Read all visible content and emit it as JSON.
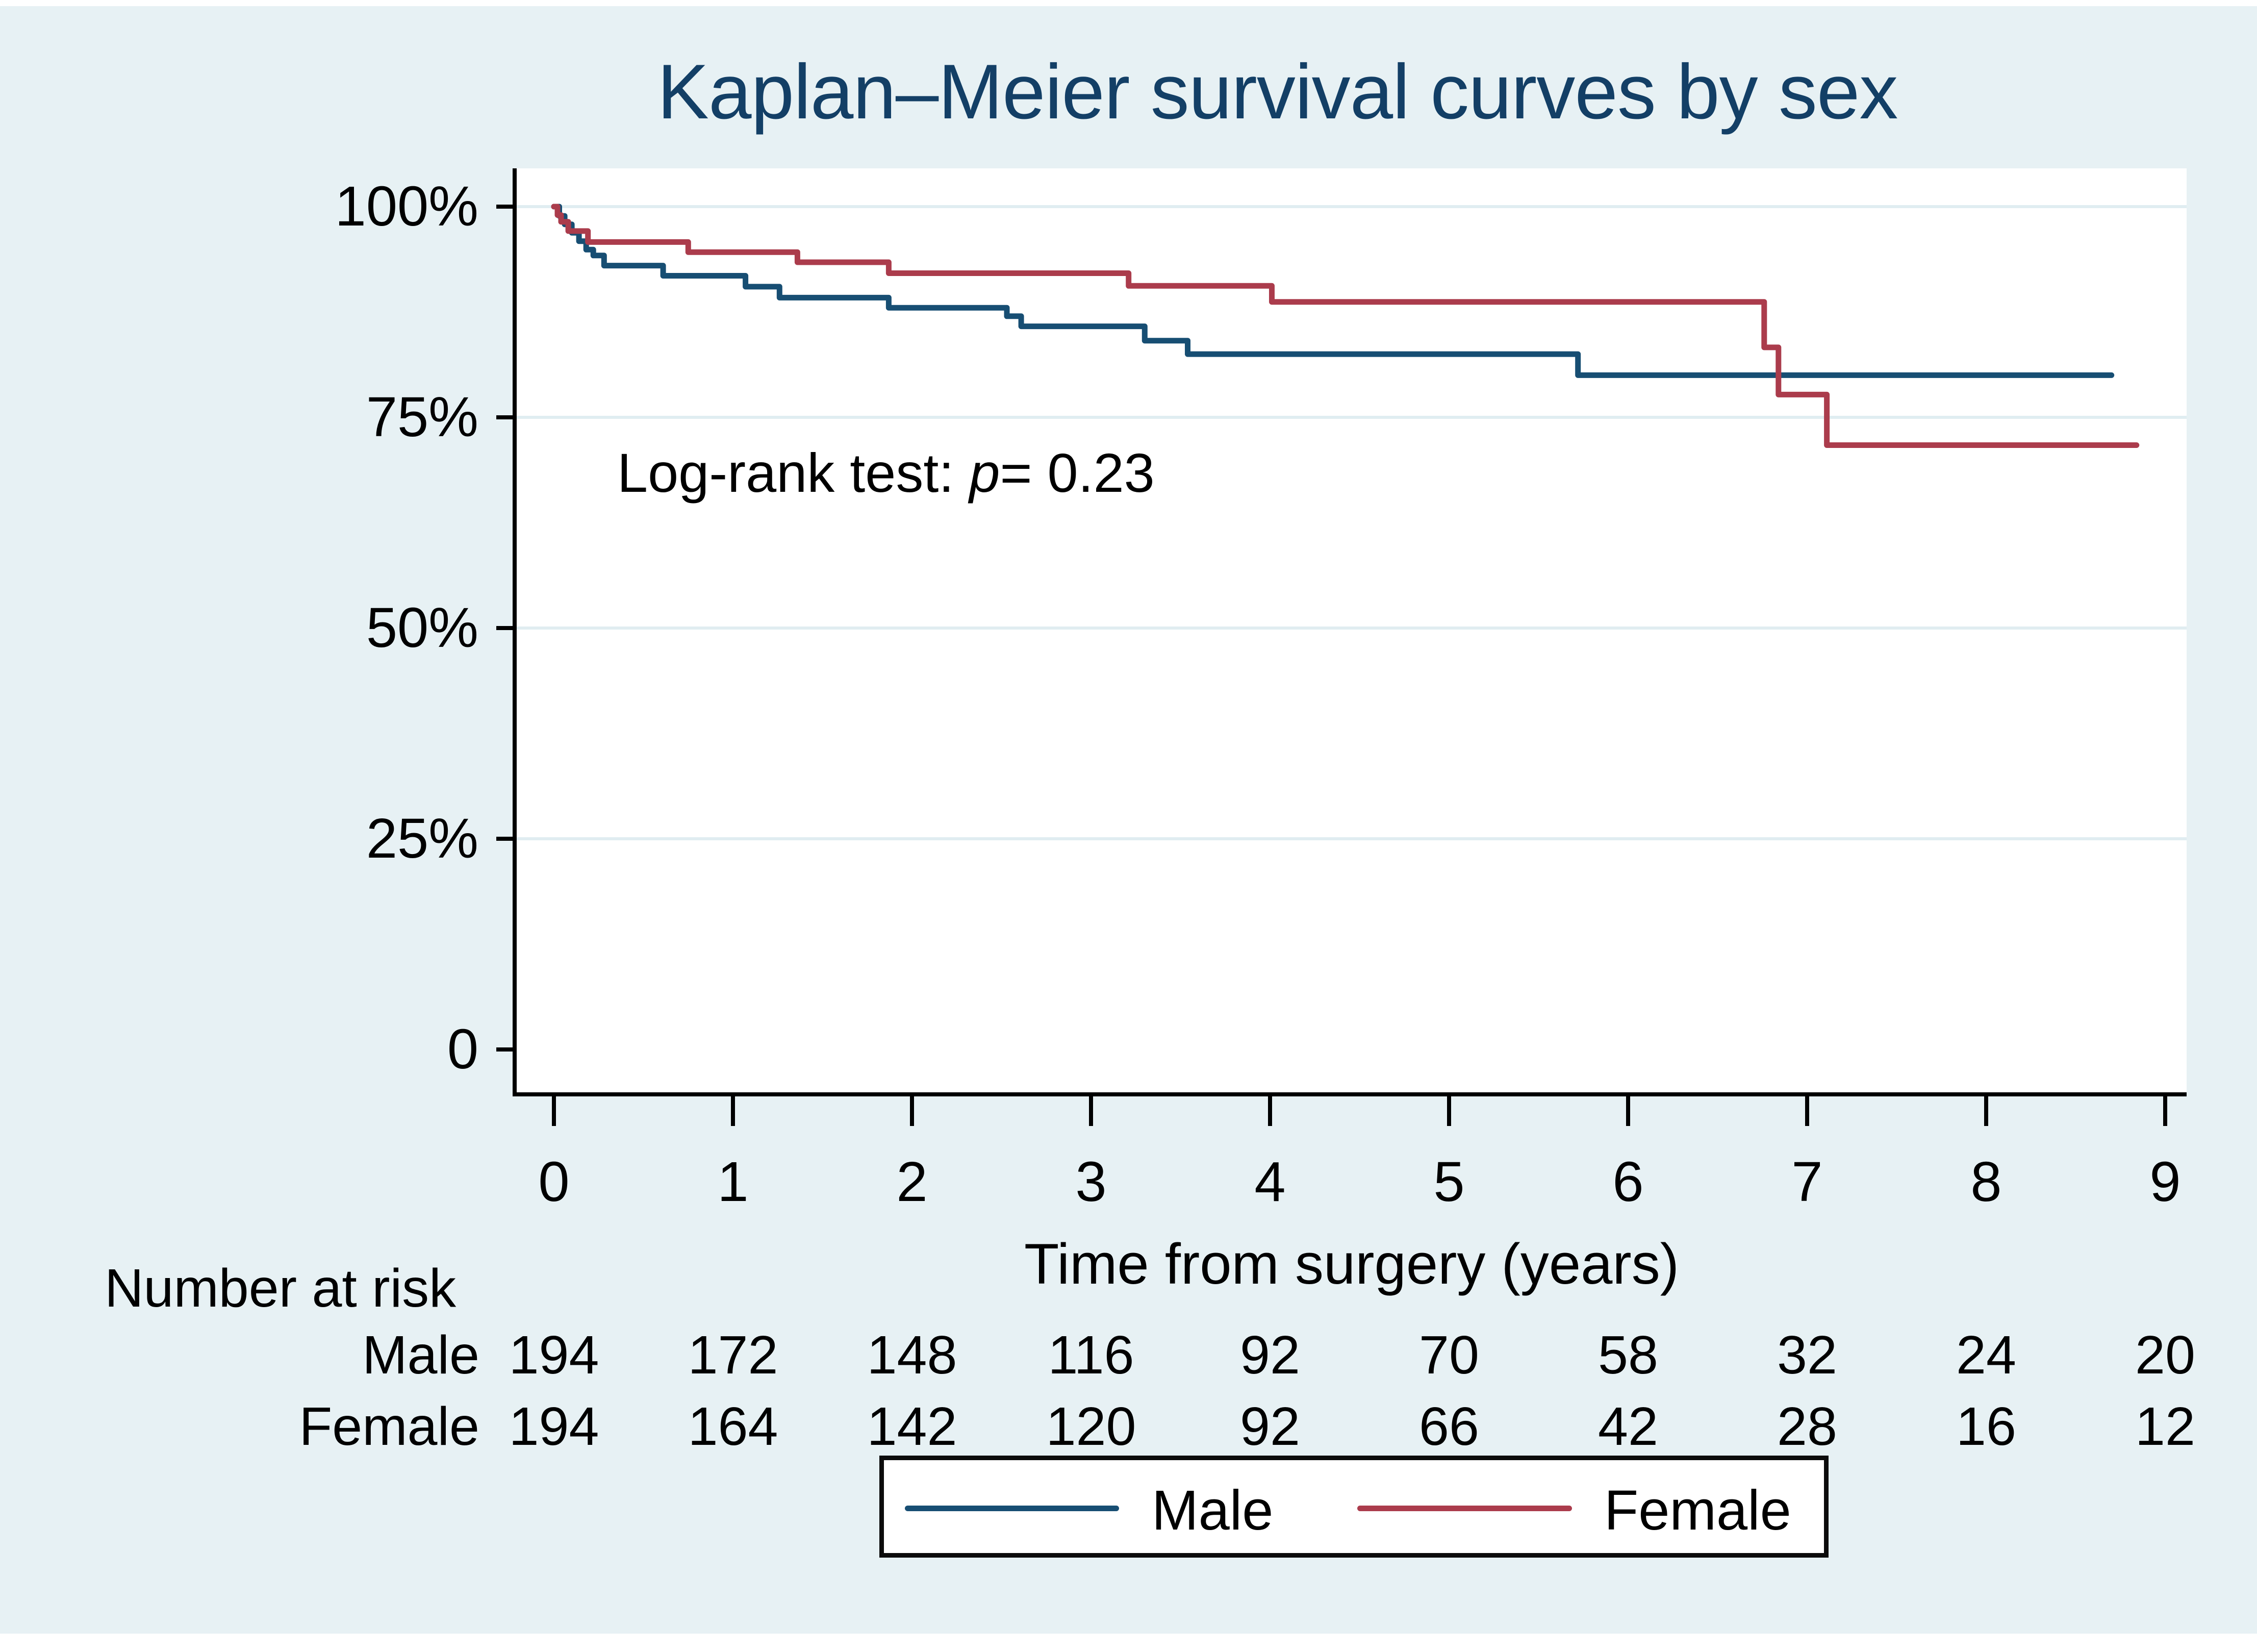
{
  "title": "Kaplan–Meier survival curves by sex",
  "annotation": {
    "prefix": "Log-rank test: ",
    "p_symbol": "p",
    "suffix": "= 0.23"
  },
  "x_axis": {
    "label": "Time from surgery (years)",
    "tick_labels": [
      "0",
      "1",
      "2",
      "3",
      "4",
      "5",
      "6",
      "7",
      "8",
      "9"
    ]
  },
  "y_axis": {
    "ticks": [
      {
        "value": 100,
        "label": "100%"
      },
      {
        "value": 75,
        "label": "75%"
      },
      {
        "value": 50,
        "label": "50%"
      },
      {
        "value": 25,
        "label": "25%"
      },
      {
        "value": 0,
        "label": "0"
      }
    ]
  },
  "risk_table": {
    "header": "Number at risk",
    "rows": [
      {
        "label": "Male",
        "values": [
          "194",
          "172",
          "148",
          "116",
          "92",
          "70",
          "58",
          "32",
          "24",
          "20"
        ]
      },
      {
        "label": "Female",
        "values": [
          "194",
          "164",
          "142",
          "120",
          "92",
          "66",
          "42",
          "28",
          "16",
          "12"
        ]
      }
    ]
  },
  "legend": [
    {
      "label": "Male",
      "color": "#174e73"
    },
    {
      "label": "Female",
      "color": "#ab3c4c"
    }
  ],
  "colors": {
    "background": "#e7f1f4",
    "plot_background": "#ffffff",
    "gridline": "#e0edf1",
    "axis": "#000000",
    "title": "#133f66",
    "male_line": "#174e73",
    "female_line": "#ab3c4c"
  },
  "chart_data": {
    "type": "line",
    "subtype": "kaplan-meier-step",
    "title": "Kaplan–Meier survival curves by sex",
    "xlabel": "Time from surgery (years)",
    "ylabel": "",
    "xlim": [
      0,
      9.3
    ],
    "ylim": [
      0,
      104.5
    ],
    "x_ticks": [
      0,
      1,
      2,
      3,
      4,
      5,
      6,
      7,
      8,
      9
    ],
    "y_ticks": [
      100,
      75,
      50,
      25,
      0
    ],
    "grid_y": [
      100,
      75,
      50,
      25
    ],
    "grid": "horizontal-only",
    "legend_position": "bottom-center-boxed",
    "annotation": "Log-rank test: p= 0.23",
    "series": [
      {
        "name": "Male",
        "color": "#174e73",
        "end_t": 8.7,
        "points": [
          [
            0,
            100
          ],
          [
            0.03,
            98.9
          ],
          [
            0.06,
            97.9
          ],
          [
            0.1,
            96.9
          ],
          [
            0.14,
            95.9
          ],
          [
            0.18,
            94.9
          ],
          [
            0.22,
            94.2
          ],
          [
            0.28,
            93.0
          ],
          [
            0.61,
            91.8
          ],
          [
            1.07,
            90.5
          ],
          [
            1.26,
            89.2
          ],
          [
            1.87,
            88.0
          ],
          [
            2.53,
            87.0
          ],
          [
            2.61,
            85.8
          ],
          [
            3.3,
            84.1
          ],
          [
            3.54,
            82.5
          ],
          [
            5.72,
            80.0
          ]
        ]
      },
      {
        "name": "Female",
        "color": "#ab3c4c",
        "end_t": 8.84,
        "points": [
          [
            0,
            100
          ],
          [
            0.02,
            99.0
          ],
          [
            0.04,
            98.2
          ],
          [
            0.08,
            97.1
          ],
          [
            0.19,
            95.8
          ],
          [
            0.75,
            94.6
          ],
          [
            1.36,
            93.4
          ],
          [
            1.87,
            92.1
          ],
          [
            3.21,
            90.6
          ],
          [
            4.01,
            88.7
          ],
          [
            6.76,
            83.3
          ],
          [
            6.84,
            77.7
          ],
          [
            7.11,
            71.7
          ]
        ]
      }
    ],
    "number_at_risk": {
      "times": [
        0,
        1,
        2,
        3,
        4,
        5,
        6,
        7,
        8,
        9
      ],
      "Male": [
        194,
        172,
        148,
        116,
        92,
        70,
        58,
        32,
        24,
        20
      ],
      "Female": [
        194,
        164,
        142,
        120,
        92,
        66,
        42,
        28,
        16,
        12
      ]
    }
  }
}
